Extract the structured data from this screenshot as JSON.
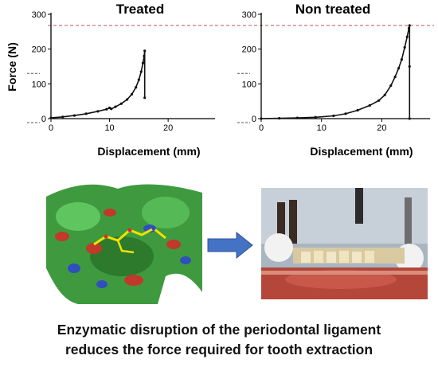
{
  "chart_data": [
    {
      "type": "scatter",
      "title": "Treated",
      "xlabel": "Displacement (mm)",
      "ylabel": "Force (N)",
      "xlim": [
        0,
        28
      ],
      "ylim": [
        0,
        300
      ],
      "xticks": [
        "0",
        "10",
        "20"
      ],
      "yticks": [
        "0",
        "100",
        "200",
        "300"
      ],
      "reference_line_y": 268,
      "series": [
        {
          "values": [
            [
              0,
              2
            ],
            [
              2,
              5
            ],
            [
              4,
              9
            ],
            [
              6,
              14
            ],
            [
              8,
              21
            ],
            [
              9.5,
              27
            ],
            [
              10,
              31
            ],
            [
              10.3,
              28
            ],
            [
              11,
              34
            ],
            [
              12,
              43
            ],
            [
              13,
              55
            ],
            [
              13.8,
              70
            ],
            [
              14.5,
              90
            ],
            [
              15,
              112
            ],
            [
              15.4,
              135
            ],
            [
              15.7,
              160
            ],
            [
              15.9,
              180
            ],
            [
              16,
              195
            ],
            [
              16,
              60
            ]
          ]
        }
      ]
    },
    {
      "type": "scatter",
      "title": "Non treated",
      "xlabel": "Displacement (mm)",
      "ylabel": "",
      "xlim": [
        0,
        28
      ],
      "ylim": [
        0,
        300
      ],
      "xticks": [
        "0",
        "10",
        "20"
      ],
      "yticks": [
        "0",
        "100",
        "200",
        "300"
      ],
      "reference_line_y": 268,
      "series": [
        {
          "values": [
            [
              0,
              0
            ],
            [
              3,
              1
            ],
            [
              6,
              2
            ],
            [
              9,
              4
            ],
            [
              12,
              8
            ],
            [
              14,
              14
            ],
            [
              16,
              24
            ],
            [
              18,
              38
            ],
            [
              19.5,
              52
            ],
            [
              20.5,
              68
            ],
            [
              21.5,
              95
            ],
            [
              22.2,
              120
            ],
            [
              22.8,
              145
            ],
            [
              23.3,
              170
            ],
            [
              23.8,
              205
            ],
            [
              24.2,
              235
            ],
            [
              24.5,
              260
            ],
            [
              24.6,
              268
            ],
            [
              24.6,
              150
            ],
            [
              24.6,
              0
            ]
          ]
        }
      ]
    }
  ],
  "caption": {
    "line1": "Enzymatic disruption of the periodontal ligament",
    "line2": "reduces the force required for tooth extraction"
  },
  "colors": {
    "series": "#111111",
    "reference_line": "#c0504d",
    "arrow": "#4472c4"
  },
  "icons": {
    "arrow": "right-arrow-icon"
  }
}
